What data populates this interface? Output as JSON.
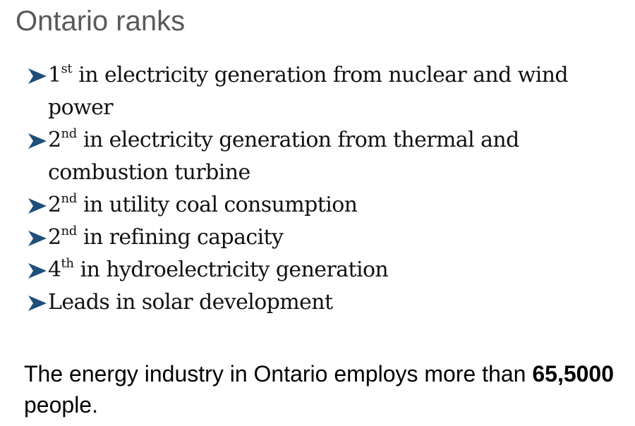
{
  "slide": {
    "title": "Ontario ranks",
    "bullets": [
      {
        "num": "1",
        "sup": "st",
        "text": " in electricity generation from nuclear and wind power"
      },
      {
        "num": "2",
        "sup": "nd",
        "text": " in electricity generation from thermal and combustion turbine"
      },
      {
        "num": "2",
        "sup": "nd",
        "text": " in utility coal consumption"
      },
      {
        "num": "2",
        "sup": "nd",
        "text": " in refining capacity"
      },
      {
        "num": "4",
        "sup": "th",
        "text": " in hydroelectricity generation"
      },
      {
        "num": "",
        "sup": "",
        "text": "Leads in solar development"
      }
    ],
    "footer": {
      "text_before": "The energy industry in Ontario employs more than ",
      "bold_number": "65,5000",
      "text_after": " people."
    },
    "colors": {
      "title": "#595959",
      "arrow": "#1f4e79",
      "text": "#111111"
    },
    "icons": {
      "bullet": "arrow-bullet-icon"
    }
  }
}
